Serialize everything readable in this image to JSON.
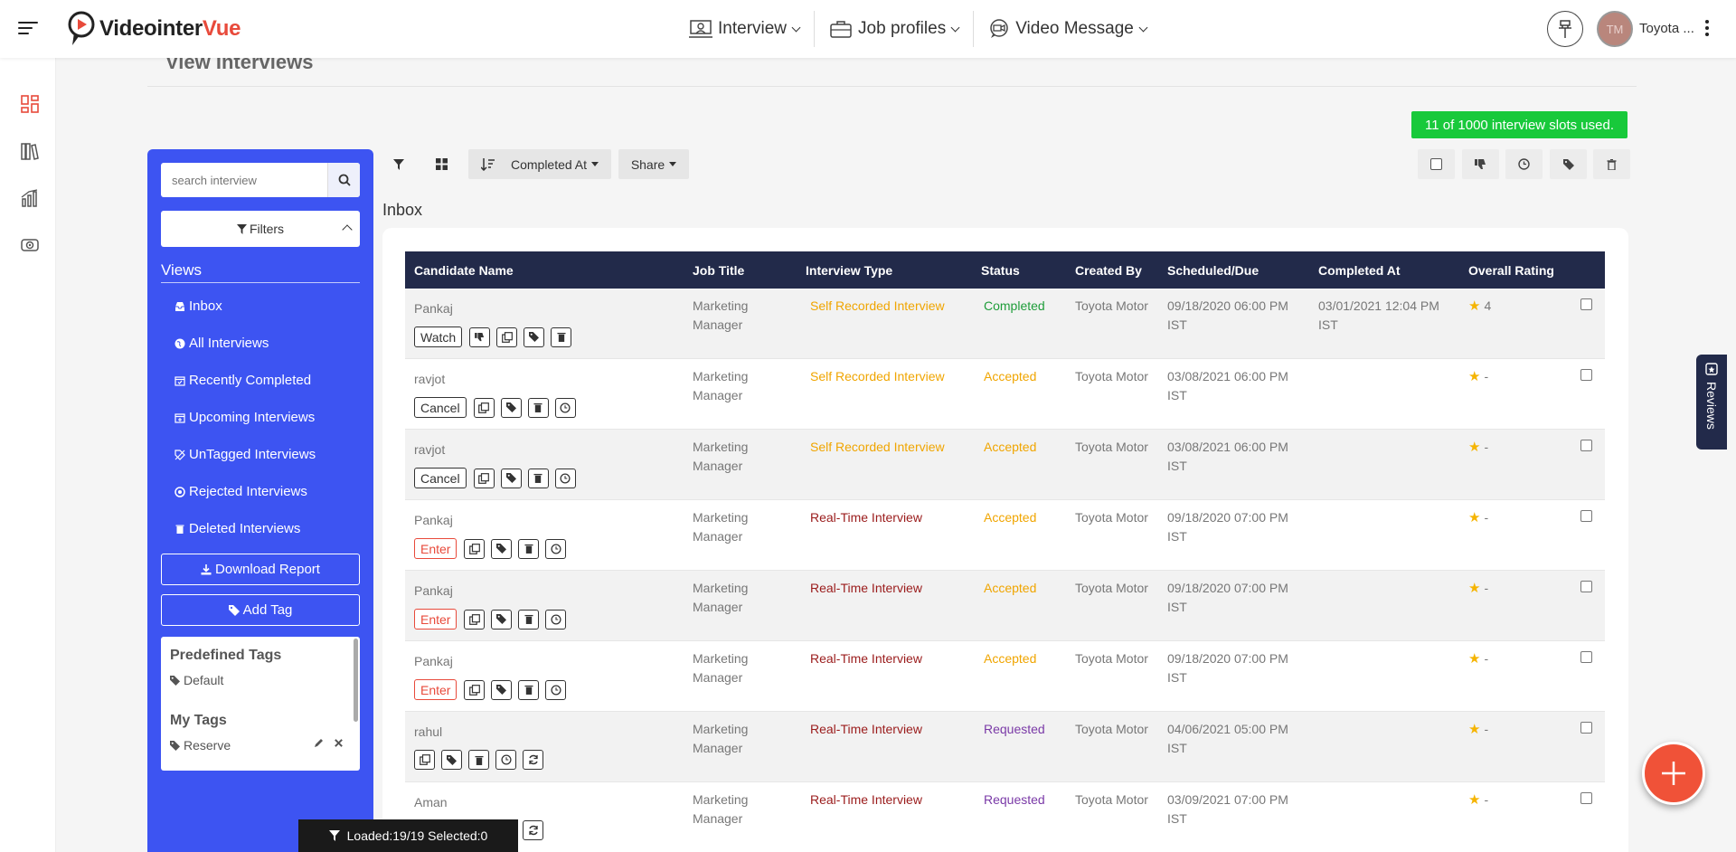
{
  "app": {
    "logo_main": "Videointer",
    "logo_accent": "Vue"
  },
  "topnav": [
    {
      "label": "Interview"
    },
    {
      "label": "Job profiles"
    },
    {
      "label": "Video Message"
    }
  ],
  "user": {
    "initials": "TM",
    "name": "Toyota ..."
  },
  "page": {
    "title": "View Interviews",
    "slots": "11 of 1000 interview slots used.",
    "inbox_label": "Inbox"
  },
  "sidebar": {
    "search_placeholder": "search interview",
    "filters_label": "Filters",
    "views_title": "Views",
    "views": [
      {
        "label": "Inbox"
      },
      {
        "label": "All Interviews"
      },
      {
        "label": "Recently Completed"
      },
      {
        "label": "Upcoming Interviews"
      },
      {
        "label": "UnTagged Interviews"
      },
      {
        "label": "Rejected Interviews"
      },
      {
        "label": "Deleted Interviews"
      }
    ],
    "download_report": "Download Report",
    "add_tag": "Add Tag",
    "predefined_tags_title": "Predefined Tags",
    "predefined_tags": [
      "Default"
    ],
    "my_tags_title": "My Tags",
    "my_tags": [
      "Reserve"
    ]
  },
  "toolbar": {
    "sort_label": "Completed At",
    "share_label": "Share"
  },
  "table": {
    "headers": [
      "Candidate Name",
      "Job Title",
      "Interview Type",
      "Status",
      "Created By",
      "Scheduled/Due",
      "Completed At",
      "Overall Rating"
    ],
    "rows": [
      {
        "name": "Pankaj",
        "action": "Watch",
        "job1": "Marketing",
        "job2": "Manager",
        "type": "Self Recorded Interview",
        "status": "Completed",
        "created": "Toyota Motor",
        "sched1": "09/18/2020 06:00 PM",
        "sched2": "IST",
        "comp1": "03/01/2021 12:04 PM",
        "comp2": "IST",
        "rating": "4"
      },
      {
        "name": "ravjot",
        "action": "Cancel",
        "job1": "Marketing",
        "job2": "Manager",
        "type": "Self Recorded Interview",
        "status": "Accepted",
        "created": "Toyota Motor",
        "sched1": "03/08/2021 06:00 PM",
        "sched2": "IST",
        "comp1": "",
        "comp2": "",
        "rating": "-"
      },
      {
        "name": "ravjot",
        "action": "Cancel",
        "job1": "Marketing",
        "job2": "Manager",
        "type": "Self Recorded Interview",
        "status": "Accepted",
        "created": "Toyota Motor",
        "sched1": "03/08/2021 06:00 PM",
        "sched2": "IST",
        "comp1": "",
        "comp2": "",
        "rating": "-"
      },
      {
        "name": "Pankaj",
        "action": "Enter",
        "job1": "Marketing",
        "job2": "Manager",
        "type": "Real-Time Interview",
        "status": "Accepted",
        "created": "Toyota Motor",
        "sched1": "09/18/2020 07:00 PM",
        "sched2": "IST",
        "comp1": "",
        "comp2": "",
        "rating": "-"
      },
      {
        "name": "Pankaj",
        "action": "Enter",
        "job1": "Marketing",
        "job2": "Manager",
        "type": "Real-Time Interview",
        "status": "Accepted",
        "created": "Toyota Motor",
        "sched1": "09/18/2020 07:00 PM",
        "sched2": "IST",
        "comp1": "",
        "comp2": "",
        "rating": "-"
      },
      {
        "name": "Pankaj",
        "action": "Enter",
        "job1": "Marketing",
        "job2": "Manager",
        "type": "Real-Time Interview",
        "status": "Accepted",
        "created": "Toyota Motor",
        "sched1": "09/18/2020 07:00 PM",
        "sched2": "IST",
        "comp1": "",
        "comp2": "",
        "rating": "-"
      },
      {
        "name": "rahul",
        "action": "",
        "job1": "Marketing",
        "job2": "Manager",
        "type": "Real-Time Interview",
        "status": "Requested",
        "created": "Toyota Motor",
        "sched1": "04/06/2021 05:00 PM",
        "sched2": "IST",
        "comp1": "",
        "comp2": "",
        "rating": "-"
      },
      {
        "name": "Aman",
        "action": "",
        "job1": "Marketing",
        "job2": "Manager",
        "type": "Real-Time Interview",
        "status": "Requested",
        "created": "Toyota Motor",
        "sched1": "03/09/2021 07:00 PM",
        "sched2": "IST",
        "comp1": "",
        "comp2": "",
        "rating": "-"
      }
    ]
  },
  "reviews_tab": "Reviews",
  "loaded_bar": "Loaded:19/19 Selected:0",
  "colors": {
    "sidebar": "#3d54f2",
    "table_header": "#222a4a",
    "slots_badge": "#18c93b",
    "fab": "#f05238"
  }
}
